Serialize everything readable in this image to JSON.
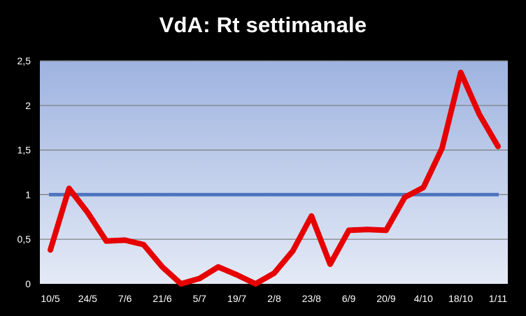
{
  "chart_data": {
    "type": "line",
    "title": "VdA: Rt settimanale",
    "xlabel": "",
    "ylabel": "",
    "ylim": [
      0,
      2.5
    ],
    "y_ticks": [
      "0",
      "0,5",
      "1",
      "1,5",
      "2",
      "2,5"
    ],
    "x_tick_labels": [
      "10/5",
      "24/5",
      "7/6",
      "21/6",
      "5/7",
      "19/7",
      "2/8",
      "23/8",
      "6/9",
      "20/9",
      "4/10",
      "18/10",
      "1/11"
    ],
    "grid": true,
    "legend": "none",
    "colors": {
      "background": "#000000",
      "plot_top": "#9EB3E0",
      "plot_bottom": "#E4EAF6",
      "rt_line": "#E60000",
      "threshold_line": "#4F75C0",
      "gridline": "#7A7A7A"
    },
    "series": [
      {
        "values": [
          0.38,
          1.07,
          0.8,
          0.48,
          0.49,
          0.44,
          0.19,
          0.0,
          0.06,
          0.19,
          0.1,
          0.0,
          0.12,
          0.37,
          0.76,
          0.22,
          0.6,
          0.61,
          0.6,
          0.97,
          1.08,
          1.52,
          2.37,
          1.9,
          1.54
        ]
      },
      {
        "values": [
          1.0,
          1.0
        ]
      }
    ]
  }
}
